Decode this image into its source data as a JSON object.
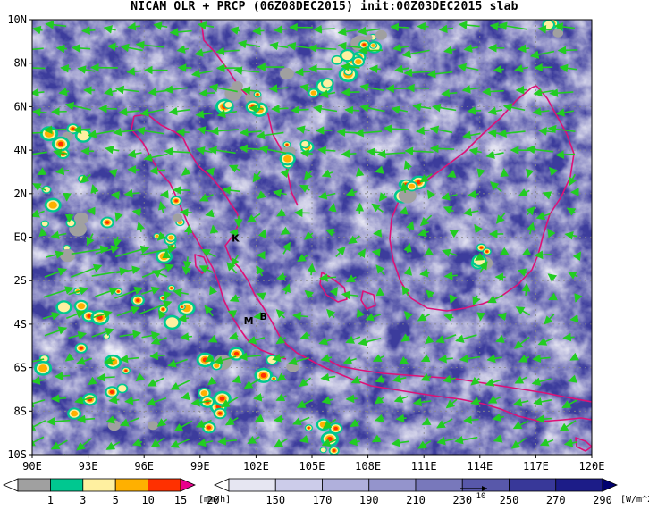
{
  "title": "NICAM OLR + PRCP (06Z08DEC2015) init:00Z03DEC2015 slab",
  "map": {
    "lon_range": [
      90,
      120
    ],
    "lat_range": [
      -10,
      10
    ],
    "lon_ticks": [
      {
        "value": 90,
        "label": "90E"
      },
      {
        "value": 93,
        "label": "93E"
      },
      {
        "value": 96,
        "label": "96E"
      },
      {
        "value": 99,
        "label": "99E"
      },
      {
        "value": 102,
        "label": "102E"
      },
      {
        "value": 105,
        "label": "105E"
      },
      {
        "value": 108,
        "label": "108E"
      },
      {
        "value": 111,
        "label": "111E"
      },
      {
        "value": 114,
        "label": "114E"
      },
      {
        "value": 117,
        "label": "117E"
      },
      {
        "value": 120,
        "label": "120E"
      }
    ],
    "lat_ticks": [
      {
        "value": 10,
        "label": "10N"
      },
      {
        "value": 8,
        "label": "8N"
      },
      {
        "value": 6,
        "label": "6N"
      },
      {
        "value": 4,
        "label": "4N"
      },
      {
        "value": 2,
        "label": "2N"
      },
      {
        "value": 0,
        "label": "EQ"
      },
      {
        "value": -2,
        "label": "2S"
      },
      {
        "value": -4,
        "label": "4S"
      },
      {
        "value": -6,
        "label": "6S"
      },
      {
        "value": -8,
        "label": "8S"
      },
      {
        "value": -10,
        "label": "10S"
      }
    ],
    "place_labels": [
      {
        "text": "K",
        "lon": 100.9,
        "lat": -0.2
      },
      {
        "text": "M",
        "lon": 101.6,
        "lat": -4.0
      },
      {
        "text": "B",
        "lon": 102.4,
        "lat": -3.8
      }
    ],
    "colors": {
      "coastline": "#dd1177",
      "wind_vector": "#22cc22",
      "gridline": "#888888"
    }
  },
  "precip_colorbar": {
    "unit": "[mm/h]",
    "labels": [
      "1",
      "3",
      "5",
      "10",
      "15",
      "20"
    ],
    "colors": [
      "#ffffff",
      "#a0a0a0",
      "#00c890",
      "#fff0a0",
      "#ffb000",
      "#ff3000",
      "#e8008c"
    ]
  },
  "olr_colorbar": {
    "unit": "[W/m^2]",
    "labels": [
      "150",
      "170",
      "190",
      "210",
      "230",
      "250",
      "270",
      "290"
    ],
    "colors": [
      "#ffffff",
      "#e6e6f2",
      "#ccccea",
      "#b0b0dc",
      "#9494cc",
      "#7878bb",
      "#5858aa",
      "#383899",
      "#1c1c88",
      "#000070"
    ],
    "reference_vector": "10"
  }
}
